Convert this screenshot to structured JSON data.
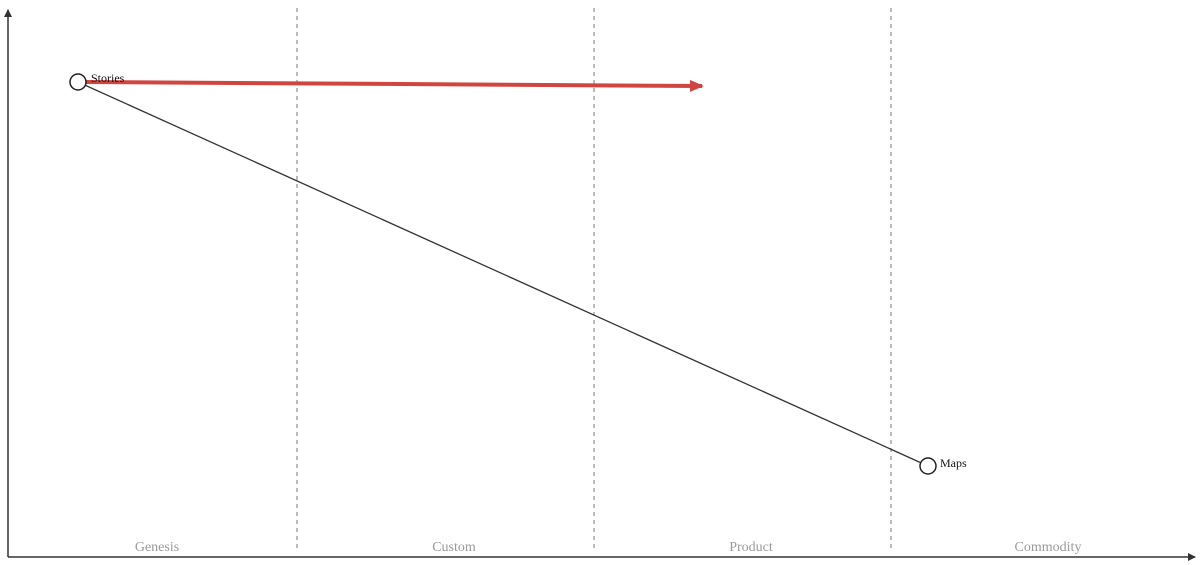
{
  "map": {
    "stages": [
      {
        "label": "Genesis"
      },
      {
        "label": "Custom"
      },
      {
        "label": "Product"
      },
      {
        "label": "Commodity"
      }
    ],
    "components": [
      {
        "id": "stories",
        "label": "Stories"
      },
      {
        "id": "maps",
        "label": "Maps"
      }
    ],
    "links": [
      {
        "from": "stories",
        "to": "maps"
      }
    ],
    "movement": {
      "component": "stories",
      "color": "#d0453f"
    },
    "colors": {
      "axis": "#333333",
      "stage_divider": "#777777",
      "link": "#333333",
      "stage_label": "#9a9a9a"
    }
  }
}
